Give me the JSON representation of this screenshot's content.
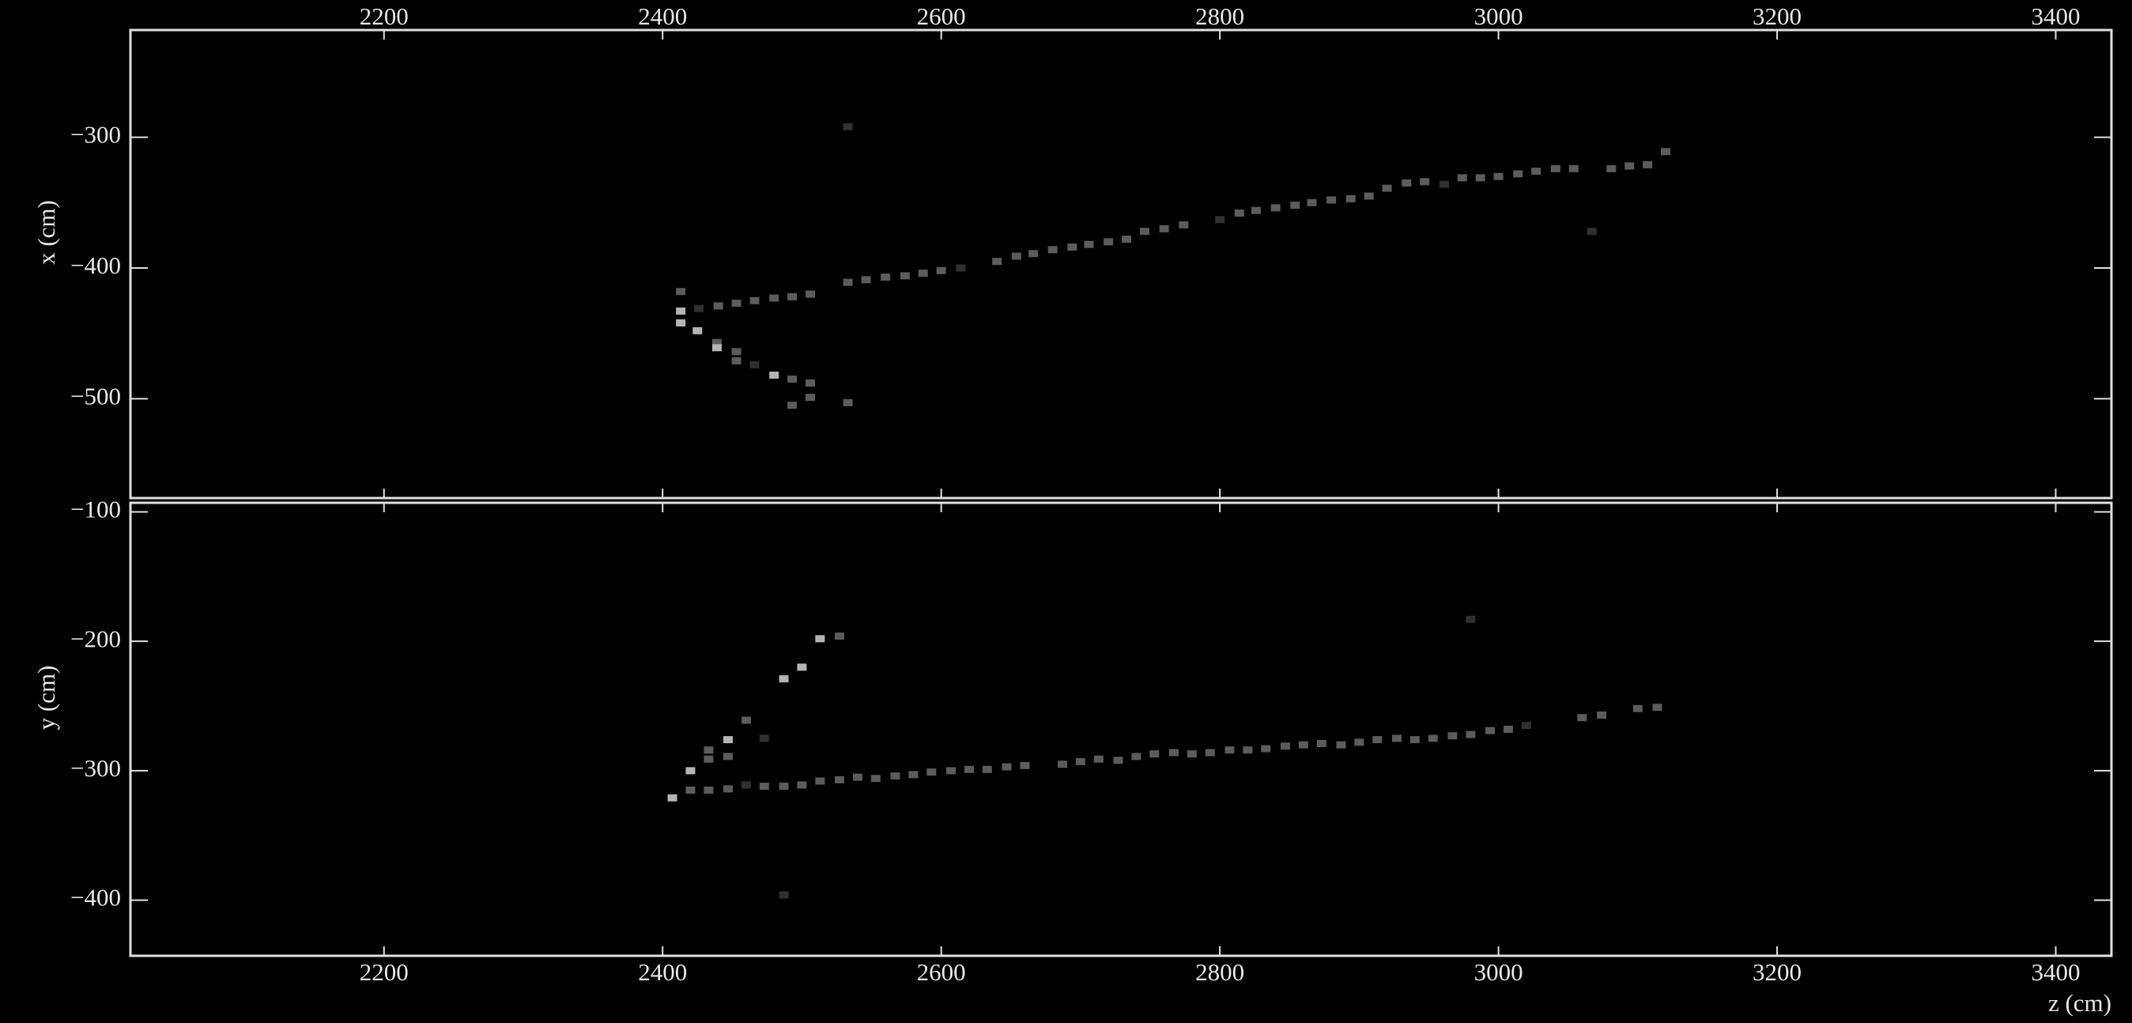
{
  "chart_data": [
    {
      "type": "scatter",
      "ylabel": "x (cm)",
      "xlim": [
        2018,
        3440
      ],
      "xticks": [
        2200,
        2400,
        2600,
        2800,
        3000,
        3200,
        3400
      ],
      "ylim": [
        -576,
        -218
      ],
      "yticks": [
        {
          "value": -300,
          "label": "−300"
        },
        {
          "value": -400,
          "label": "−400"
        },
        {
          "value": -500,
          "label": "−500"
        }
      ],
      "series": [
        {
          "color": "#5c5c5c",
          "x": [
            2413,
            2440,
            2453,
            2466,
            2480,
            2493,
            2506,
            2533,
            2546,
            2560,
            2574,
            2587,
            2600,
            2640,
            2654,
            2666,
            2680,
            2694,
            2706,
            2720,
            2733,
            2746,
            2760,
            2774,
            2814,
            2826,
            2840,
            2854,
            2866,
            2880,
            2894,
            2907,
            2920,
            2934,
            2947,
            2974,
            2987,
            3000,
            3014,
            3027,
            3041,
            3054,
            3081,
            3094,
            3107,
            3120,
            2439,
            2453,
            2453,
            2493,
            2506,
            2493,
            2506,
            2533
          ],
          "values": [
            -418,
            -429,
            -427,
            -425,
            -423,
            -422,
            -420,
            -411,
            -409,
            -407,
            -406,
            -404,
            -402,
            -395,
            -391,
            -389,
            -386,
            -384,
            -382,
            -380,
            -378,
            -372,
            -370,
            -367,
            -358,
            -356,
            -354,
            -352,
            -350,
            -348,
            -347,
            -345,
            -339,
            -335,
            -334,
            -331,
            -331,
            -330,
            -328,
            -326,
            -324,
            -324,
            -324,
            -322,
            -321,
            -311,
            -457,
            -464,
            -471,
            -485,
            -488,
            -505,
            -499,
            -503
          ]
        },
        {
          "color": "#b4b4b4",
          "x": [
            2413,
            2413,
            2425,
            2439,
            2480
          ],
          "values": [
            -433,
            -442,
            -448,
            -461,
            -482
          ]
        },
        {
          "color": "#303030",
          "x": [
            2533,
            3067,
            2961,
            2800,
            2614,
            2426,
            2466
          ],
          "values": [
            -292,
            -372,
            -336,
            -363,
            -400,
            -431,
            -474
          ]
        }
      ]
    },
    {
      "type": "scatter",
      "xlabel": "z (cm)",
      "ylabel": "y (cm)",
      "xlim": [
        2018,
        3440
      ],
      "xticks": [
        2200,
        2400,
        2600,
        2800,
        3000,
        3200,
        3400
      ],
      "ylim": [
        -443,
        -93
      ],
      "yticks": [
        {
          "value": -100,
          "label": "−100"
        },
        {
          "value": -200,
          "label": "−200"
        },
        {
          "value": -300,
          "label": "−300"
        },
        {
          "value": -400,
          "label": "−400"
        }
      ],
      "series": [
        {
          "color": "#5c5c5c",
          "x": [
            2420,
            2433,
            2447,
            2473,
            2487,
            2500,
            2513,
            2527,
            2540,
            2553,
            2567,
            2580,
            2593,
            2607,
            2620,
            2633,
            2647,
            2660,
            2687,
            2700,
            2713,
            2727,
            2740,
            2753,
            2767,
            2780,
            2793,
            2807,
            2820,
            2833,
            2847,
            2860,
            2873,
            2887,
            2900,
            2913,
            2927,
            2940,
            2953,
            2967,
            2980,
            2994,
            3007,
            3060,
            3074,
            3100,
            3114,
            2433,
            2433,
            2447,
            2460,
            2527
          ],
          "values": [
            -315,
            -315,
            -314,
            -312,
            -312,
            -311,
            -308,
            -307,
            -305,
            -306,
            -304,
            -303,
            -301,
            -300,
            -299,
            -299,
            -297,
            -296,
            -295,
            -293,
            -291,
            -292,
            -289,
            -287,
            -286,
            -287,
            -286,
            -284,
            -284,
            -283,
            -281,
            -280,
            -279,
            -280,
            -278,
            -276,
            -275,
            -276,
            -275,
            -273,
            -272,
            -269,
            -268,
            -259,
            -257,
            -252,
            -251,
            -284,
            -291,
            -289,
            -261,
            -196
          ]
        },
        {
          "color": "#b4b4b4",
          "x": [
            2407,
            2420,
            2447,
            2513,
            2487,
            2500
          ],
          "values": [
            -321,
            -300,
            -276,
            -198,
            -229,
            -220
          ]
        },
        {
          "color": "#303030",
          "x": [
            2980,
            2487,
            2473,
            2460,
            3020
          ],
          "values": [
            -183,
            -396,
            -275,
            -311,
            -265
          ]
        }
      ]
    }
  ]
}
